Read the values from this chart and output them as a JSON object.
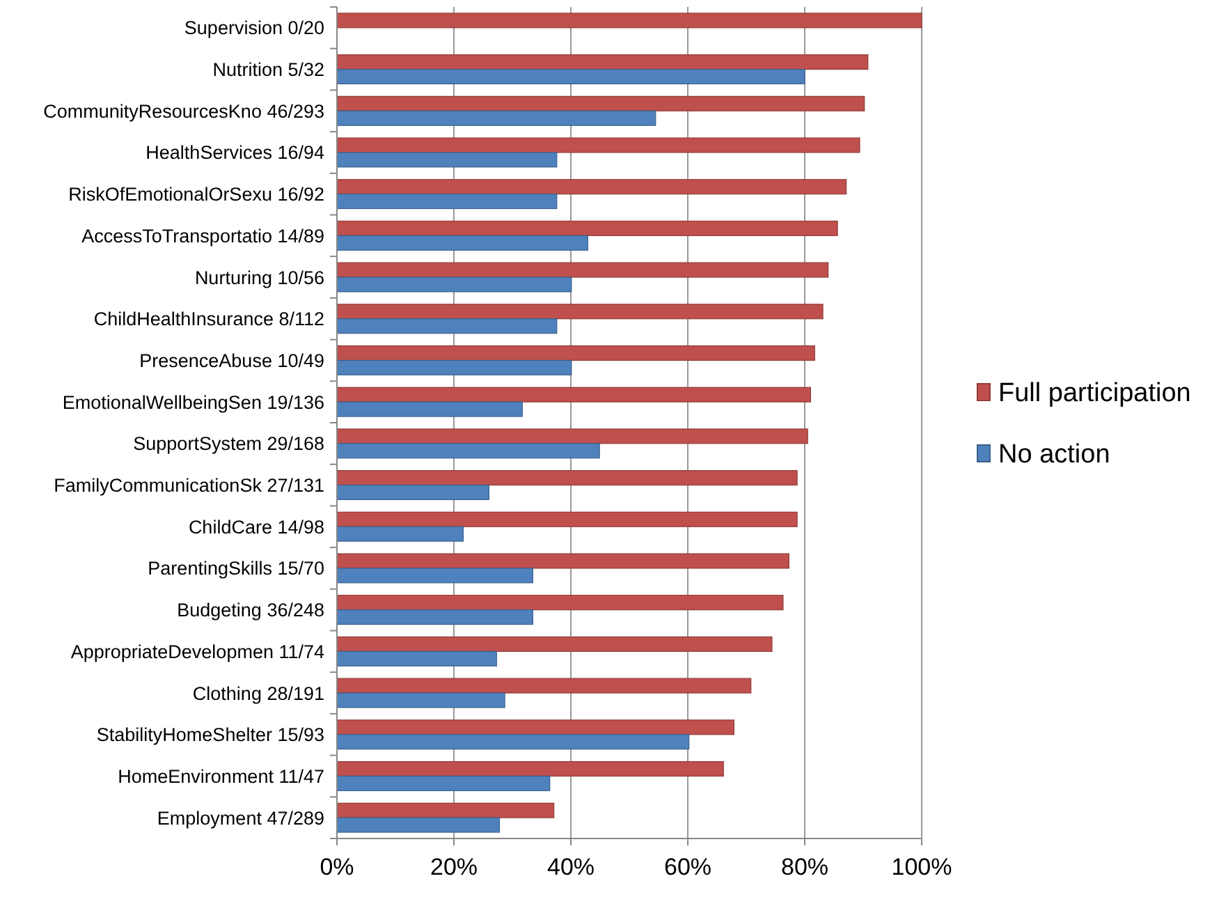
{
  "chart_data": {
    "type": "bar",
    "orientation": "horizontal",
    "categories": [
      "Supervision 0/20",
      "Nutrition 5/32",
      "CommunityResourcesKno 46/293",
      "HealthServices 16/94",
      "RiskOfEmotionalOrSexu 16/92",
      "AccessToTransportatio 14/89",
      "Nurturing 10/56",
      "ChildHealthInsurance 8/112",
      "PresenceAbuse 10/49",
      "EmotionalWellbeingSen 19/136",
      "SupportSystem 29/168",
      "FamilyCommunicationSk 27/131",
      "ChildCare 14/98",
      "ParentingSkills 15/70",
      "Budgeting 36/248",
      "AppropriateDevelopmen 11/74",
      "Clothing 28/191",
      "StabilityHomeShelter 15/93",
      "HomeEnvironment 11/47",
      "Employment 47/289"
    ],
    "series": [
      {
        "name": "Full participation",
        "color": "#c0504d",
        "values": [
          100,
          90.8,
          90.2,
          89.4,
          87.1,
          85.6,
          84.0,
          83.1,
          81.7,
          81.0,
          80.5,
          78.7,
          78.7,
          77.3,
          76.3,
          74.4,
          70.8,
          67.9,
          66.1,
          37.1
        ]
      },
      {
        "name": "No action",
        "color": "#4f81bd",
        "values": [
          0,
          80,
          54.5,
          37.6,
          37.6,
          42.9,
          40.1,
          37.6,
          40.1,
          31.7,
          44.9,
          26.0,
          21.6,
          33.5,
          33.5,
          27.3,
          28.7,
          60.2,
          36.4,
          27.8
        ]
      }
    ],
    "xlim": [
      0,
      100
    ],
    "xticks": [
      {
        "value": 0,
        "label": "0%"
      },
      {
        "value": 20,
        "label": "20%"
      },
      {
        "value": 40,
        "label": "40%"
      },
      {
        "value": 60,
        "label": "60%"
      },
      {
        "value": 80,
        "label": "80%"
      },
      {
        "value": 100,
        "label": "100%"
      }
    ],
    "grid": "x",
    "legend": "right"
  }
}
